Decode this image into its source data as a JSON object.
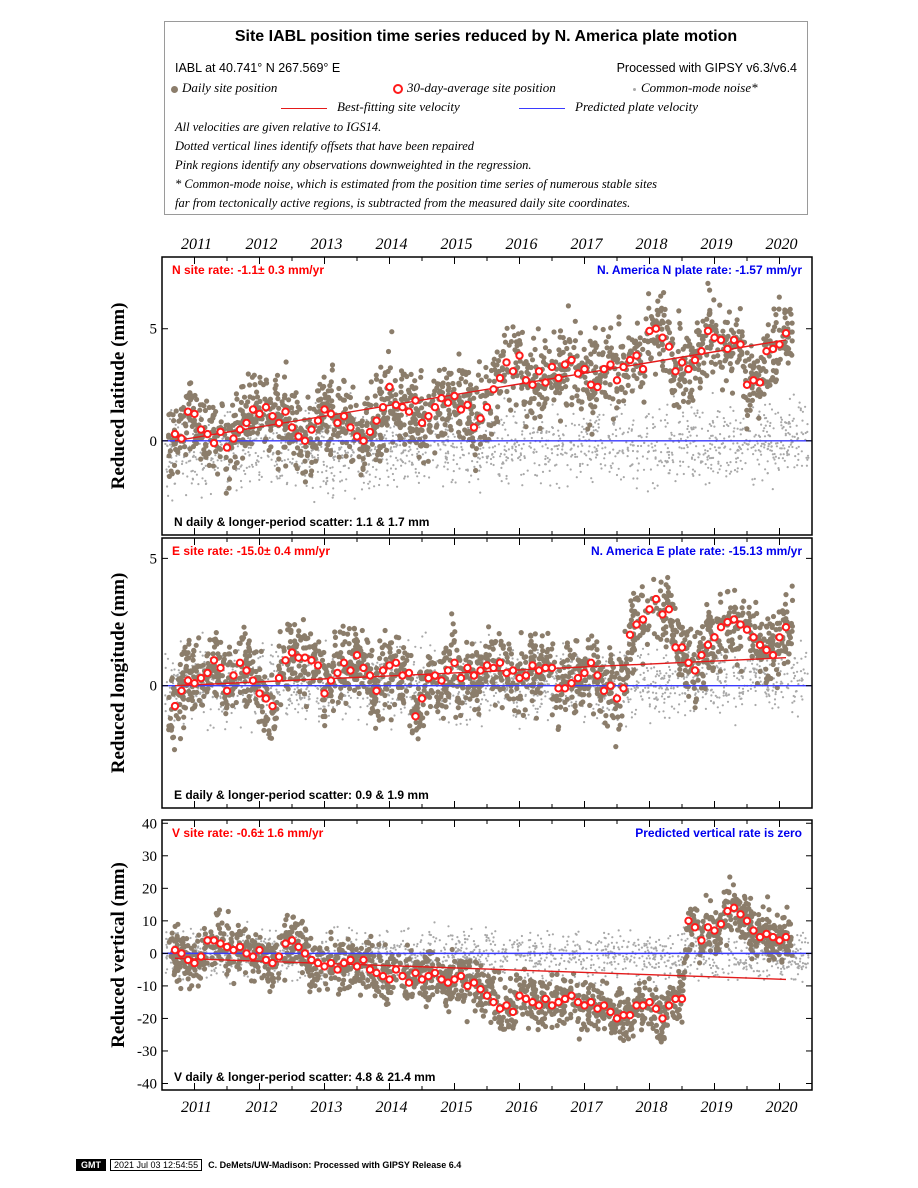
{
  "legend": {
    "title": "Site IABL position time series reduced by N. America plate motion",
    "site_location": "IABL at 40.741° N 267.569° E",
    "processed": "Processed with GIPSY v6.3/v6.4",
    "daily": "Daily site position",
    "avg30": "30-day-average site position",
    "cmn": "Common-mode noise*",
    "best_fit": "Best-fitting site velocity",
    "predicted": "Predicted plate velocity",
    "notes": [
      "All velocities are given relative to IGS14.",
      "Dotted vertical lines identify offsets that have been repaired",
      "Pink regions identify any observations downweighted in the regression.",
      "* Common-mode noise, which is estimated from the position time series of numerous stable sites",
      "far from tectonically active regions, is subtracted from the measured daily site coordinates."
    ]
  },
  "footer": {
    "logo": "GMT",
    "timestamp": "2021 Jul 03 12:54:55",
    "credit": "C. DeMets/UW-Madison: Processed with GIPSY Release 6.4"
  },
  "colors": {
    "daily": "#8b7d6b",
    "avg30": "#ff1a1a",
    "cmn": "#a8a8a8",
    "fit": "#e41a1a",
    "plate": "#3a3aff",
    "site_text": "#ff0000",
    "plate_text": "#0000ee"
  },
  "chart_data": [
    {
      "type": "scatter",
      "ylabel": "Reduced latitude (mm)",
      "xlim": [
        2010.5,
        2020.5
      ],
      "ylim": [
        -4.2,
        8.2
      ],
      "yticks": [
        0,
        5
      ],
      "x_tick_labels": [
        "2011",
        "2012",
        "2013",
        "2014",
        "2015",
        "2016",
        "2017",
        "2018",
        "2019",
        "2020"
      ],
      "site_rate_label": "N site rate:  -1.1± 0.3 mm/yr",
      "plate_rate_label": "N. America N plate rate: -1.57 mm/yr",
      "scatter_label": "N daily & longer-period scatter:   1.1 &   1.7 mm",
      "daily_spread": 1.1,
      "fit_line": {
        "x": [
          2010.7,
          2020.1
        ],
        "y": [
          0.0,
          4.5
        ]
      },
      "plate_line": {
        "y": 0
      },
      "avg30_x": [
        2010.7,
        2010.8,
        2010.9,
        2011.0,
        2011.1,
        2011.2,
        2011.3,
        2011.4,
        2011.5,
        2011.6,
        2011.7,
        2011.8,
        2011.9,
        2012.0,
        2012.1,
        2012.2,
        2012.3,
        2012.4,
        2012.5,
        2012.6,
        2012.7,
        2012.8,
        2012.9,
        2013.0,
        2013.1,
        2013.2,
        2013.3,
        2013.4,
        2013.5,
        2013.6,
        2013.7,
        2013.8,
        2013.9,
        2014.0,
        2014.1,
        2014.2,
        2014.3,
        2014.4,
        2014.5,
        2014.6,
        2014.7,
        2014.8,
        2014.9,
        2015.0,
        2015.1,
        2015.2,
        2015.3,
        2015.4,
        2015.5,
        2015.6,
        2015.7,
        2015.8,
        2015.9,
        2016.0,
        2016.1,
        2016.2,
        2016.3,
        2016.4,
        2016.5,
        2016.6,
        2016.7,
        2016.8,
        2016.9,
        2017.0,
        2017.1,
        2017.2,
        2017.3,
        2017.4,
        2017.5,
        2017.6,
        2017.7,
        2017.8,
        2017.9,
        2018.0,
        2018.1,
        2018.2,
        2018.3,
        2018.4,
        2018.5,
        2018.6,
        2018.7,
        2018.8,
        2018.9,
        2019.0,
        2019.1,
        2019.2,
        2019.3,
        2019.4,
        2019.5,
        2019.6,
        2019.7,
        2019.8,
        2019.9,
        2020.0,
        2020.1
      ],
      "avg30_y": [
        0.3,
        0.1,
        1.3,
        1.2,
        0.5,
        0.3,
        -0.1,
        0.4,
        -0.3,
        0.1,
        0.5,
        0.8,
        1.4,
        1.2,
        1.5,
        1.1,
        0.8,
        1.3,
        0.6,
        0.2,
        0.0,
        0.5,
        0.9,
        1.4,
        1.2,
        0.8,
        1.1,
        0.6,
        0.2,
        0.0,
        0.4,
        0.9,
        1.5,
        2.4,
        1.6,
        1.5,
        1.3,
        1.8,
        0.8,
        1.1,
        1.5,
        1.9,
        1.7,
        2.0,
        1.4,
        1.6,
        0.6,
        1.0,
        1.5,
        2.3,
        2.8,
        3.5,
        3.1,
        3.8,
        2.7,
        2.5,
        3.1,
        2.6,
        3.3,
        2.8,
        3.4,
        3.6,
        3.0,
        3.2,
        2.5,
        2.4,
        3.2,
        3.4,
        2.7,
        3.3,
        3.6,
        3.8,
        3.2,
        4.9,
        5.0,
        4.6,
        4.2,
        3.1,
        3.5,
        3.2,
        3.6,
        4.0,
        4.9,
        4.6,
        4.5,
        4.1,
        4.5,
        4.3,
        2.5,
        2.7,
        2.6,
        4.0,
        4.1,
        4.3,
        4.8
      ]
    },
    {
      "type": "scatter",
      "ylabel": "Reduced longitude (mm)",
      "xlim": [
        2010.5,
        2020.5
      ],
      "ylim": [
        -4.8,
        5.8
      ],
      "yticks": [
        0,
        5
      ],
      "x_tick_labels": [
        "2011",
        "2012",
        "2013",
        "2014",
        "2015",
        "2016",
        "2017",
        "2018",
        "2019",
        "2020"
      ],
      "site_rate_label": "E site rate:  -15.0± 0.4 mm/yr",
      "plate_rate_label": "N. America E plate rate: -15.13 mm/yr",
      "scatter_label": "E daily & longer-period scatter:   0.9 &   1.9 mm",
      "daily_spread": 0.9,
      "fit_line": {
        "x": [
          2010.7,
          2020.1
        ],
        "y": [
          0.0,
          1.1
        ]
      },
      "plate_line": {
        "y": 0
      },
      "avg30_x": [
        2010.7,
        2010.8,
        2010.9,
        2011.0,
        2011.1,
        2011.2,
        2011.3,
        2011.4,
        2011.5,
        2011.6,
        2011.7,
        2011.8,
        2011.9,
        2012.0,
        2012.1,
        2012.2,
        2012.3,
        2012.4,
        2012.5,
        2012.6,
        2012.7,
        2012.8,
        2012.9,
        2013.0,
        2013.1,
        2013.2,
        2013.3,
        2013.4,
        2013.5,
        2013.6,
        2013.7,
        2013.8,
        2013.9,
        2014.0,
        2014.1,
        2014.2,
        2014.3,
        2014.4,
        2014.5,
        2014.6,
        2014.7,
        2014.8,
        2014.9,
        2015.0,
        2015.1,
        2015.2,
        2015.3,
        2015.4,
        2015.5,
        2015.6,
        2015.7,
        2015.8,
        2015.9,
        2016.0,
        2016.1,
        2016.2,
        2016.3,
        2016.4,
        2016.5,
        2016.6,
        2016.7,
        2016.8,
        2016.9,
        2017.0,
        2017.1,
        2017.2,
        2017.3,
        2017.4,
        2017.5,
        2017.6,
        2017.7,
        2017.8,
        2017.9,
        2018.0,
        2018.1,
        2018.2,
        2018.3,
        2018.4,
        2018.5,
        2018.6,
        2018.7,
        2018.8,
        2018.9,
        2019.0,
        2019.1,
        2019.2,
        2019.3,
        2019.4,
        2019.5,
        2019.6,
        2019.7,
        2019.8,
        2019.9,
        2020.0,
        2020.1
      ],
      "avg30_y": [
        -0.8,
        -0.2,
        0.2,
        0.1,
        0.3,
        0.5,
        1.0,
        0.7,
        -0.2,
        0.4,
        0.9,
        0.6,
        0.2,
        -0.3,
        -0.5,
        -0.8,
        0.3,
        1.0,
        1.3,
        1.1,
        1.1,
        1.0,
        0.8,
        -0.3,
        0.2,
        0.5,
        0.9,
        0.6,
        1.2,
        0.7,
        0.4,
        -0.2,
        0.6,
        0.8,
        0.9,
        0.4,
        0.5,
        -1.2,
        -0.5,
        0.3,
        0.4,
        0.2,
        0.6,
        0.9,
        0.3,
        0.7,
        0.4,
        0.6,
        0.8,
        0.7,
        0.9,
        0.5,
        0.6,
        0.3,
        0.4,
        0.8,
        0.6,
        0.7,
        0.7,
        -0.1,
        -0.1,
        0.1,
        0.3,
        0.5,
        0.9,
        0.4,
        -0.2,
        0.0,
        -0.5,
        -0.1,
        2.0,
        2.4,
        2.6,
        3.0,
        3.4,
        2.8,
        3.0,
        1.5,
        1.5,
        0.9,
        0.6,
        1.2,
        1.6,
        1.9,
        2.3,
        2.5,
        2.6,
        2.4,
        2.2,
        1.9,
        1.6,
        1.4,
        1.2,
        1.9,
        2.3
      ]
    },
    {
      "type": "scatter",
      "ylabel": "Reduced vertical (mm)",
      "xlim": [
        2010.5,
        2020.5
      ],
      "ylim": [
        -42,
        41
      ],
      "yticks": [
        -40,
        -30,
        -20,
        -10,
        0,
        10,
        20,
        30,
        40
      ],
      "x_tick_labels": [
        "2011",
        "2012",
        "2013",
        "2014",
        "2015",
        "2016",
        "2017",
        "2018",
        "2019",
        "2020"
      ],
      "site_rate_label": "V site rate:  -0.6± 1.6 mm/yr",
      "plate_rate_label": "Predicted vertical rate is zero",
      "scatter_label": "V daily & longer-period scatter:   4.8 &  21.4 mm",
      "daily_spread": 4.8,
      "fit_line": {
        "x": [
          2010.7,
          2020.1
        ],
        "y": [
          -1.5,
          -8.0
        ]
      },
      "plate_line": {
        "y": 0
      },
      "avg30_x": [
        2010.7,
        2010.8,
        2010.9,
        2011.0,
        2011.1,
        2011.2,
        2011.3,
        2011.4,
        2011.5,
        2011.6,
        2011.7,
        2011.8,
        2011.9,
        2012.0,
        2012.1,
        2012.2,
        2012.3,
        2012.4,
        2012.5,
        2012.6,
        2012.7,
        2012.8,
        2012.9,
        2013.0,
        2013.1,
        2013.2,
        2013.3,
        2013.4,
        2013.5,
        2013.6,
        2013.7,
        2013.8,
        2013.9,
        2014.0,
        2014.1,
        2014.2,
        2014.3,
        2014.4,
        2014.5,
        2014.6,
        2014.7,
        2014.8,
        2014.9,
        2015.0,
        2015.1,
        2015.2,
        2015.3,
        2015.4,
        2015.5,
        2015.6,
        2015.7,
        2015.8,
        2015.9,
        2016.0,
        2016.1,
        2016.2,
        2016.3,
        2016.4,
        2016.5,
        2016.6,
        2016.7,
        2016.8,
        2016.9,
        2017.0,
        2017.1,
        2017.2,
        2017.3,
        2017.4,
        2017.5,
        2017.6,
        2017.7,
        2017.8,
        2017.9,
        2018.0,
        2018.1,
        2018.2,
        2018.3,
        2018.4,
        2018.5,
        2018.6,
        2018.7,
        2018.8,
        2018.9,
        2019.0,
        2019.1,
        2019.2,
        2019.3,
        2019.4,
        2019.5,
        2019.6,
        2019.7,
        2019.8,
        2019.9,
        2020.0,
        2020.1
      ],
      "avg30_y": [
        1,
        0,
        -2,
        -3,
        -1,
        4,
        4,
        3,
        2,
        1,
        2,
        0,
        -1,
        1,
        -2,
        -3,
        -1,
        3,
        4,
        2,
        0,
        -2,
        -3,
        -4,
        -3,
        -5,
        -3,
        -2,
        -4,
        -2,
        -5,
        -6,
        -7,
        -8,
        -5,
        -7,
        -9,
        -6,
        -8,
        -7,
        -6,
        -8,
        -9,
        -8,
        -7,
        -10,
        -9,
        -11,
        -13,
        -15,
        -17,
        -16,
        -18,
        -13,
        -14,
        -15,
        -16,
        -14,
        -16,
        -15,
        -14,
        -13,
        -15,
        -16,
        -15,
        -17,
        -16,
        -18,
        -20,
        -19,
        -19,
        -16,
        -16,
        -15,
        -17,
        -20,
        -16,
        -14,
        -14,
        10,
        8,
        4,
        8,
        7,
        9,
        13,
        14,
        12,
        10,
        7,
        5,
        6,
        5,
        4,
        5
      ]
    }
  ]
}
